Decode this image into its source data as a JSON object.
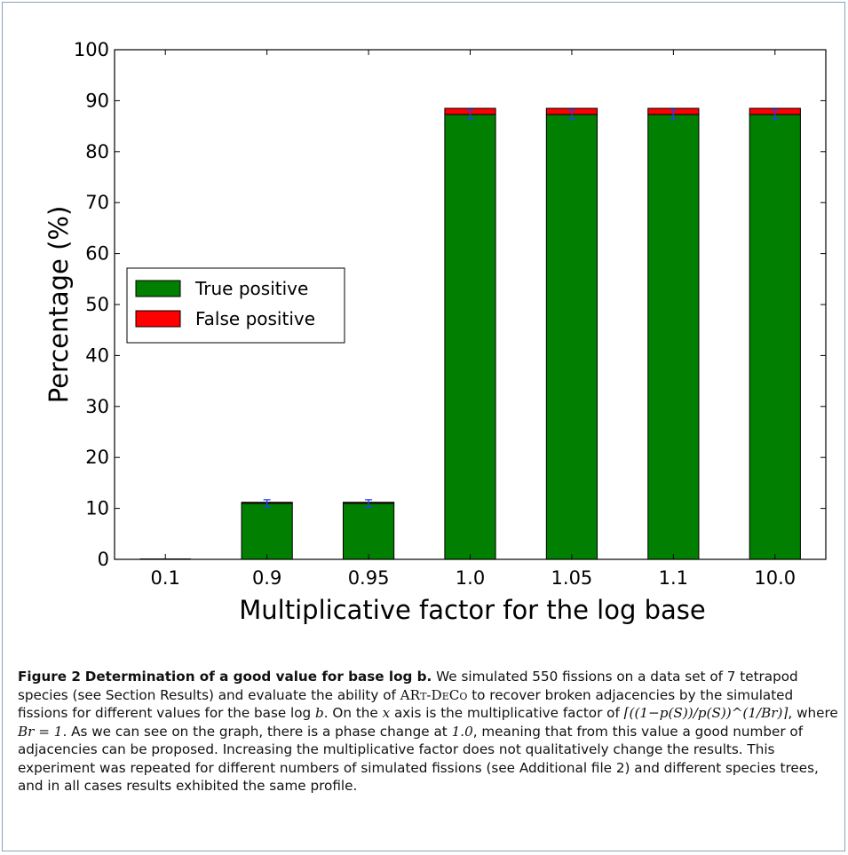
{
  "chart_data": {
    "type": "bar",
    "stacked": true,
    "categories": [
      "0.1",
      "0.9",
      "0.95",
      "1.0",
      "1.05",
      "1.1",
      "10.0"
    ],
    "series": [
      {
        "name": "True positive",
        "values": [
          0,
          11,
          11,
          87.3,
          87.3,
          87.3,
          87.3
        ],
        "errors": [
          0,
          0.7,
          0.7,
          0.9,
          0.9,
          0.9,
          0.9
        ],
        "color": "#007f00"
      },
      {
        "name": "False positive",
        "values": [
          0,
          0.2,
          0.2,
          1.2,
          1.2,
          1.2,
          1.2
        ],
        "color": "#ff0000"
      }
    ],
    "error_bar_color": "#1f3fff",
    "xlabel": "Multiplicative factor for the log base",
    "ylabel": "Percentage (%)",
    "ylim": [
      0,
      100
    ],
    "yticks": [
      "0",
      "10",
      "20",
      "30",
      "40",
      "50",
      "60",
      "70",
      "80",
      "90",
      "100"
    ],
    "grid": false,
    "legend_position": "center-left"
  },
  "caption": {
    "label": "Figure 2",
    "title": "Determination of a good value for base log b.",
    "text": "We simulated 550 fissions on a data set of 7 tetrapod species (see Section Results) and evaluate the ability of ",
    "tool_name": "ARt-DeCo",
    "text2": " to recover broken adjacencies by the simulated fissions for different values for the base log ",
    "var_b": "b",
    "text3": ". On the ",
    "var_x": "x",
    "text4": " axis is the multiplicative factor of ",
    "formula": "⌈((1−p(S))/p(S))^(1/Br)⌉",
    "text5": ", where ",
    "formula2": "Br = 1",
    "text6": ". As we can see on the graph, there is a phase change at ",
    "value": "1.0",
    "text7": ", meaning that from this value a good number of adjacencies can be proposed. Increasing the multiplicative factor does not qualitatively change the results. This experiment was repeated for different numbers of simulated fissions (see Additional file 2) and different species trees, and in all cases results exhibited the same profile."
  }
}
